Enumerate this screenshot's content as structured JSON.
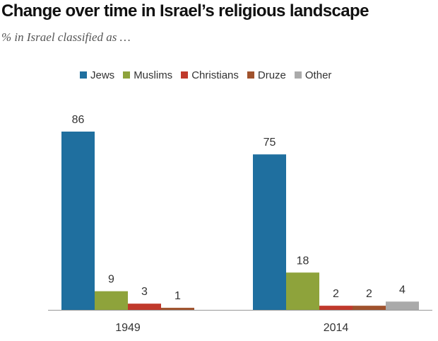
{
  "chart_data": {
    "type": "bar",
    "title": "Change over time in Israel’s religious landscape",
    "subtitle": "% in Israel classified as …",
    "categories": [
      "1949",
      "2014"
    ],
    "series": [
      {
        "name": "Jews",
        "color": "#1f6f9f",
        "values": [
          86,
          75
        ]
      },
      {
        "name": "Muslims",
        "color": "#8ea33b",
        "values": [
          9,
          18
        ]
      },
      {
        "name": "Christians",
        "color": "#c0392b",
        "values": [
          3,
          2
        ]
      },
      {
        "name": "Druze",
        "color": "#a0522d",
        "values": [
          1,
          2
        ]
      },
      {
        "name": "Other",
        "color": "#aaaaaa",
        "values": [
          null,
          4
        ]
      }
    ],
    "ylim": [
      0,
      86
    ],
    "legend": "top",
    "grid": false
  }
}
